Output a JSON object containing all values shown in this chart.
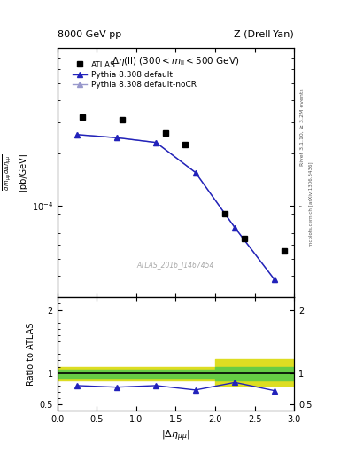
{
  "title_left": "8000 GeV pp",
  "title_right": "Z (Drell-Yan)",
  "annotation": "Δη(ll) (300 < m_{ll} < 500 GeV)",
  "watermark": "ATLAS_2016_I1467454",
  "rivet_text": "Rivet 3.1.10, ≥ 3.2M events",
  "mcplots_text": "mcplots.cern.ch [arXiv:1306.3436]",
  "atlas_x": [
    0.32,
    0.82,
    1.37,
    1.62,
    2.12,
    2.37,
    2.87
  ],
  "atlas_y": [
    0.00032,
    0.00031,
    0.00026,
    0.000225,
    9e-05,
    6.5e-05,
    5.5e-05
  ],
  "py_default_x": [
    0.25,
    0.75,
    1.25,
    1.75,
    2.25,
    2.75
  ],
  "py_default_y": [
    0.000255,
    0.000245,
    0.00023,
    0.000155,
    7.5e-05,
    3.8e-05
  ],
  "py_nocr_x": [
    0.25,
    0.75,
    1.25,
    1.75,
    2.25,
    2.75
  ],
  "py_nocr_y": [
    0.000255,
    0.000245,
    0.00023,
    0.000155,
    7.5e-05,
    3.8e-05
  ],
  "ratio_x": [
    0.25,
    0.75,
    1.25,
    1.75,
    2.25,
    2.75
  ],
  "ratio_default_y": [
    0.8,
    0.775,
    0.8,
    0.73,
    0.85,
    0.72
  ],
  "yellow_regions": [
    {
      "x": [
        0.0,
        2.0
      ],
      "ylo": 0.88,
      "yhi": 1.1
    },
    {
      "x": [
        2.0,
        3.0
      ],
      "ylo": 0.8,
      "yhi": 1.22
    }
  ],
  "green_regions": [
    {
      "x": [
        0.0,
        2.0
      ],
      "ylo": 0.93,
      "yhi": 1.05
    },
    {
      "x": [
        2.0,
        3.0
      ],
      "ylo": 0.88,
      "yhi": 1.1
    }
  ],
  "color_atlas": "#000000",
  "color_py_default": "#2222bb",
  "color_py_nocr": "#9999cc",
  "color_green": "#66cc44",
  "color_yellow": "#dddd22",
  "xlim": [
    0,
    3
  ],
  "ylim_main_lo": 3e-05,
  "ylim_main_hi": 0.0008,
  "ylim_ratio_lo": 0.4,
  "ylim_ratio_hi": 2.2
}
